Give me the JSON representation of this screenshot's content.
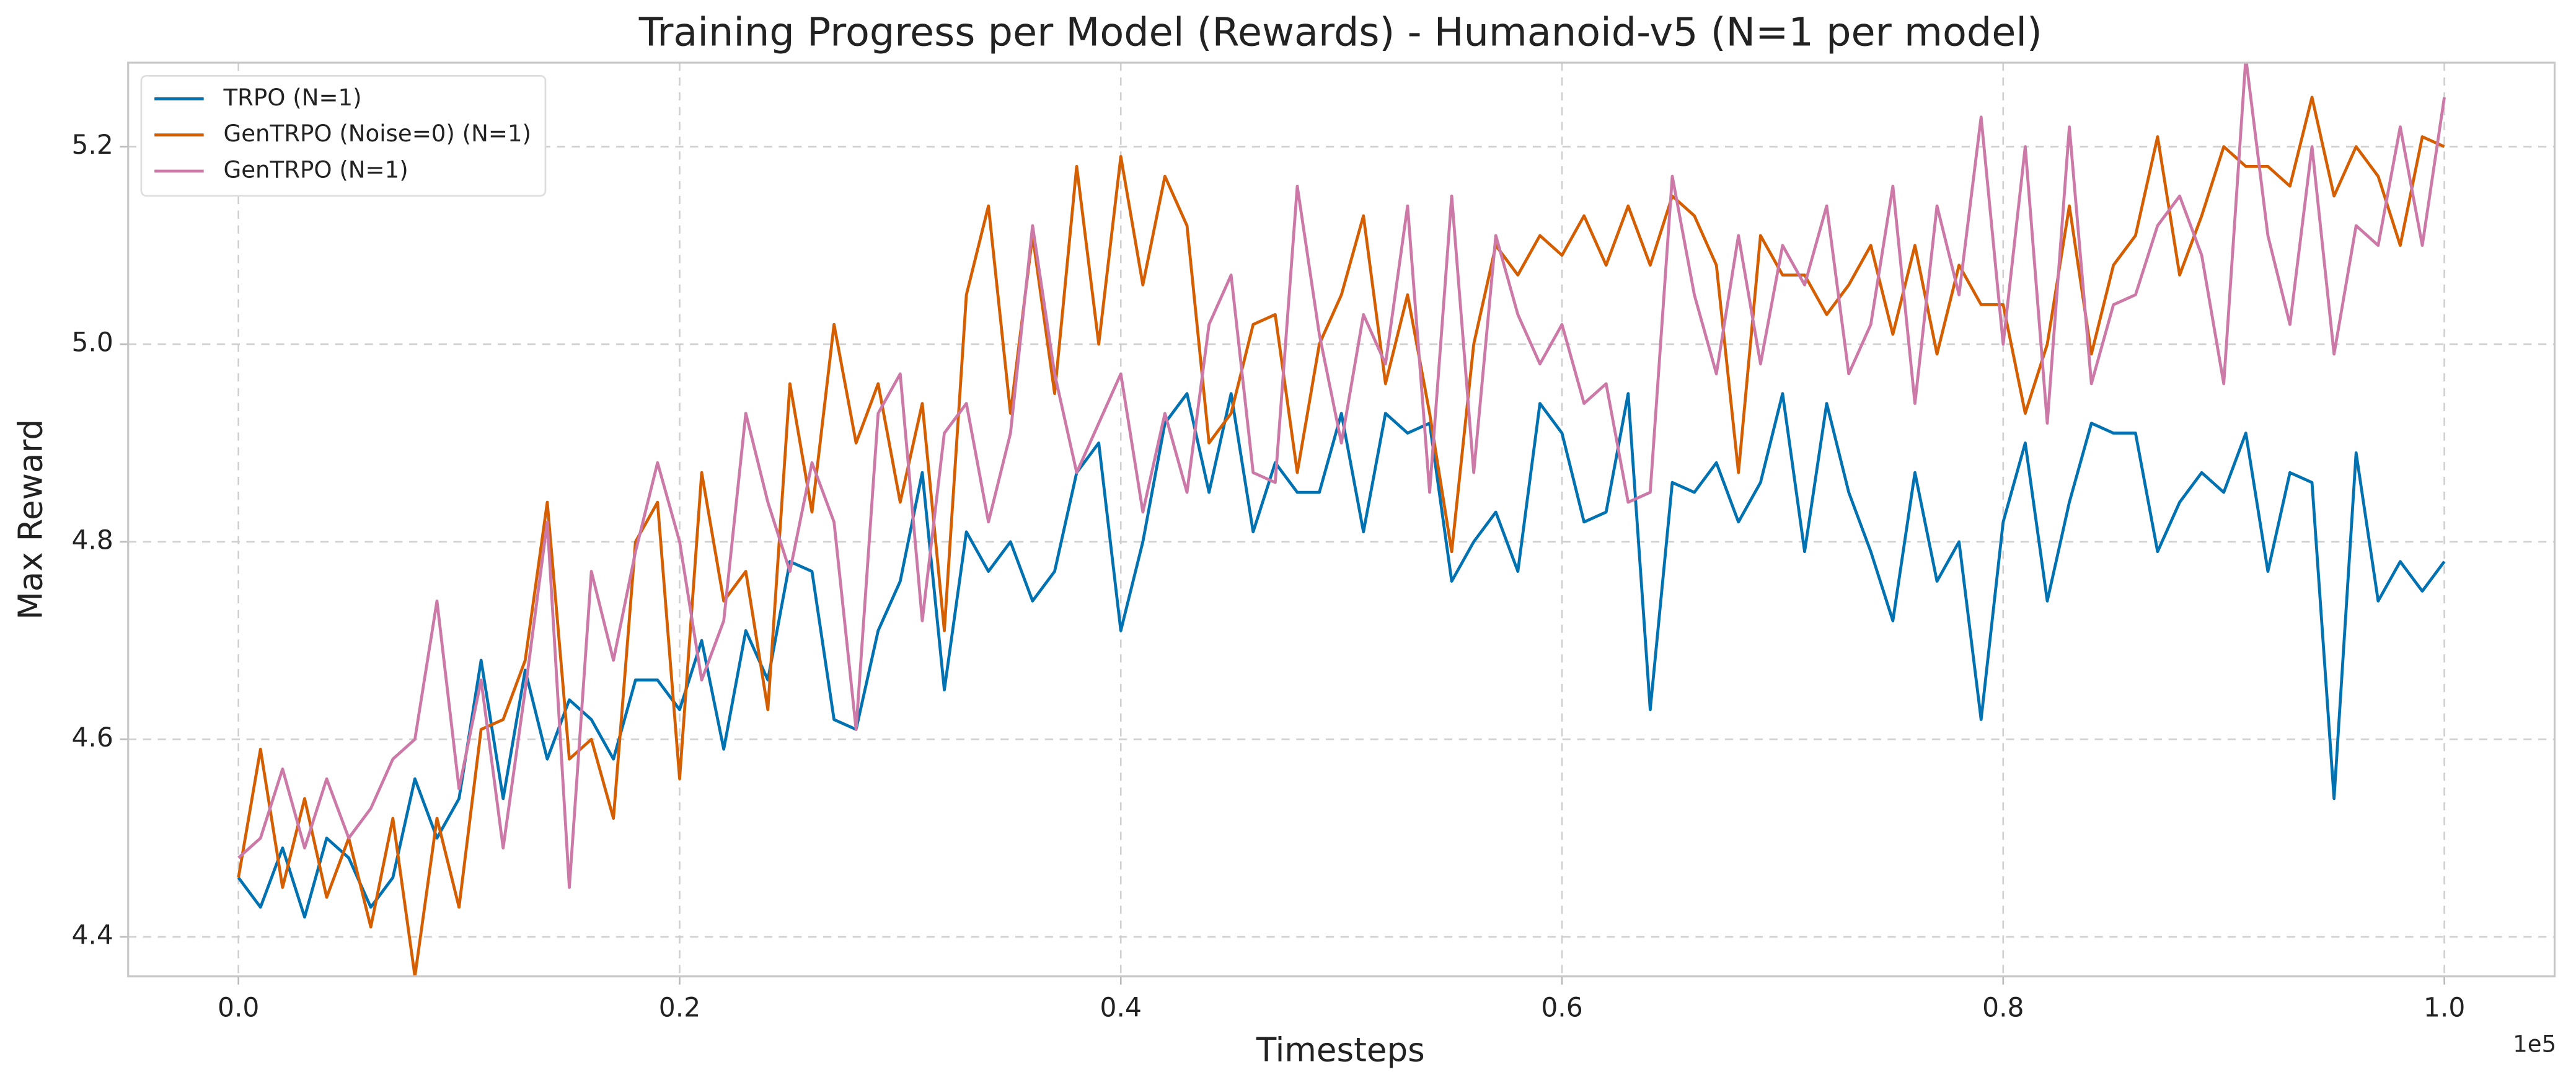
{
  "chart_data": {
    "type": "line",
    "title": "Training Progress per Model (Rewards) - Humanoid-v5 (N=1 per model)",
    "x_label": "Timesteps",
    "y_label": "Max Reward",
    "x_offset_label": "1e5",
    "legend_position": "upper left",
    "grid": true,
    "xlim": [
      -5000,
      105000
    ],
    "ylim": [
      4.36,
      5.285
    ],
    "xticks": [
      {
        "value": 0,
        "label": "0.0"
      },
      {
        "value": 20000,
        "label": "0.2"
      },
      {
        "value": 40000,
        "label": "0.4"
      },
      {
        "value": 60000,
        "label": "0.6"
      },
      {
        "value": 80000,
        "label": "0.8"
      },
      {
        "value": 100000,
        "label": "1.0"
      }
    ],
    "yticks": [
      4.4,
      4.6,
      4.8,
      {
        "value": 5,
        "label": "5.0"
      },
      5.2
    ],
    "x": [
      0,
      1000,
      2000,
      3000,
      4000,
      5000,
      6000,
      7000,
      8000,
      9000,
      10000,
      11000,
      12000,
      13000,
      14000,
      15000,
      16000,
      17000,
      18000,
      19000,
      20000,
      21000,
      22000,
      23000,
      24000,
      25000,
      26000,
      27000,
      28000,
      29000,
      30000,
      31000,
      32000,
      33000,
      34000,
      35000,
      36000,
      37000,
      38000,
      39000,
      40000,
      41000,
      42000,
      43000,
      44000,
      45000,
      46000,
      47000,
      48000,
      49000,
      50000,
      51000,
      52000,
      53000,
      54000,
      55000,
      56000,
      57000,
      58000,
      59000,
      60000,
      61000,
      62000,
      63000,
      64000,
      65000,
      66000,
      67000,
      68000,
      69000,
      70000,
      71000,
      72000,
      73000,
      74000,
      75000,
      76000,
      77000,
      78000,
      79000,
      80000,
      81000,
      82000,
      83000,
      84000,
      85000,
      86000,
      87000,
      88000,
      89000,
      90000,
      91000,
      92000,
      93000,
      94000,
      95000,
      96000,
      97000,
      98000,
      99000,
      100000
    ],
    "series": [
      {
        "name": "TRPO (N=1)",
        "color": "#0072b2",
        "values": [
          4.46,
          4.43,
          4.49,
          4.42,
          4.5,
          4.48,
          4.43,
          4.46,
          4.56,
          4.5,
          4.54,
          4.68,
          4.54,
          4.67,
          4.58,
          4.64,
          4.62,
          4.58,
          4.66,
          4.66,
          4.63,
          4.7,
          4.59,
          4.71,
          4.66,
          4.78,
          4.77,
          4.62,
          4.61,
          4.71,
          4.76,
          4.87,
          4.65,
          4.81,
          4.77,
          4.8,
          4.74,
          4.77,
          4.87,
          4.9,
          4.71,
          4.8,
          4.92,
          4.95,
          4.85,
          4.95,
          4.81,
          4.88,
          4.85,
          4.85,
          4.93,
          4.81,
          4.93,
          4.91,
          4.92,
          4.76,
          4.8,
          4.83,
          4.77,
          4.94,
          4.91,
          4.82,
          4.83,
          4.95,
          4.63,
          4.86,
          4.85,
          4.88,
          4.82,
          4.86,
          4.95,
          4.79,
          4.94,
          4.85,
          4.79,
          4.72,
          4.87,
          4.76,
          4.8,
          4.62,
          4.82,
          4.9,
          4.74,
          4.84,
          4.92,
          4.91,
          4.91,
          4.79,
          4.84,
          4.87,
          4.85,
          4.91,
          4.77,
          4.87,
          4.86,
          4.54,
          4.89,
          4.74,
          4.78,
          4.75,
          4.78
        ]
      },
      {
        "name": "GenTRPO (Noise=0) (N=1)",
        "color": "#d55e00",
        "values": [
          4.46,
          4.59,
          4.45,
          4.54,
          4.44,
          4.5,
          4.41,
          4.52,
          4.36,
          4.52,
          4.43,
          4.61,
          4.62,
          4.68,
          4.84,
          4.58,
          4.6,
          4.52,
          4.8,
          4.84,
          4.56,
          4.87,
          4.74,
          4.77,
          4.63,
          4.96,
          4.83,
          5.02,
          4.9,
          4.96,
          4.84,
          4.94,
          4.71,
          5.05,
          5.14,
          4.93,
          5.11,
          4.95,
          5.18,
          5.0,
          5.19,
          5.06,
          5.17,
          5.12,
          4.9,
          4.93,
          5.02,
          5.03,
          4.87,
          5.0,
          5.05,
          5.13,
          4.96,
          5.05,
          4.93,
          4.79,
          5.0,
          5.1,
          5.07,
          5.11,
          5.09,
          5.13,
          5.08,
          5.14,
          5.08,
          5.15,
          5.13,
          5.08,
          4.87,
          5.11,
          5.07,
          5.07,
          5.03,
          5.06,
          5.1,
          5.01,
          5.1,
          4.99,
          5.08,
          5.04,
          5.04,
          4.93,
          5.0,
          5.14,
          4.99,
          5.08,
          5.11,
          5.21,
          5.07,
          5.13,
          5.2,
          5.18,
          5.18,
          5.16,
          5.25,
          5.15,
          5.2,
          5.17,
          5.1,
          5.21,
          5.2
        ]
      },
      {
        "name": "GenTRPO (N=1)",
        "color": "#cc79a7",
        "values": [
          4.48,
          4.5,
          4.57,
          4.49,
          4.56,
          4.5,
          4.53,
          4.58,
          4.6,
          4.74,
          4.55,
          4.66,
          4.49,
          4.65,
          4.82,
          4.45,
          4.77,
          4.68,
          4.79,
          4.88,
          4.8,
          4.66,
          4.72,
          4.93,
          4.84,
          4.77,
          4.88,
          4.82,
          4.61,
          4.93,
          4.97,
          4.72,
          4.91,
          4.94,
          4.82,
          4.91,
          5.12,
          4.97,
          4.87,
          4.92,
          4.97,
          4.83,
          4.93,
          4.85,
          5.02,
          5.07,
          4.87,
          4.86,
          5.16,
          5.01,
          4.9,
          5.03,
          4.98,
          5.14,
          4.85,
          5.15,
          4.87,
          5.11,
          5.03,
          4.98,
          5.02,
          4.94,
          4.96,
          4.84,
          4.85,
          5.17,
          5.05,
          4.97,
          5.11,
          4.98,
          5.1,
          5.06,
          5.14,
          4.97,
          5.02,
          5.16,
          4.94,
          5.14,
          5.05,
          5.23,
          5.0,
          5.2,
          4.92,
          5.22,
          4.96,
          5.04,
          5.05,
          5.12,
          5.15,
          5.09,
          4.96,
          5.29,
          5.11,
          5.02,
          5.2,
          4.99,
          5.12,
          5.1,
          5.22,
          5.1,
          5.25
        ]
      }
    ]
  }
}
